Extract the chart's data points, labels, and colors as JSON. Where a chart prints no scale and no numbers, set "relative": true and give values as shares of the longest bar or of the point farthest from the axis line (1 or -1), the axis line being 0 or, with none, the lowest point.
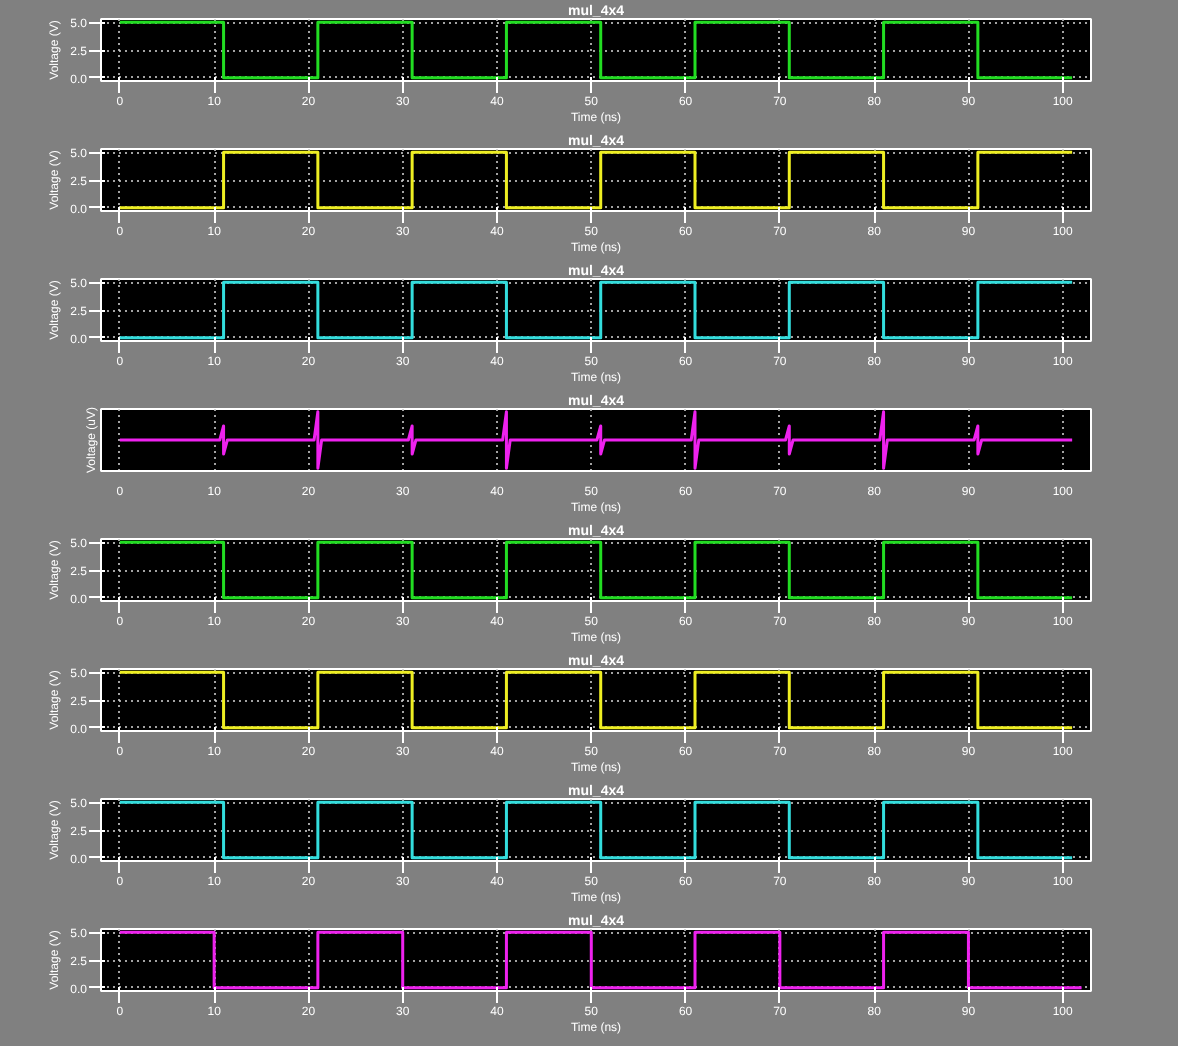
{
  "chart_data": [
    {
      "type": "line",
      "title": "mul_4x4",
      "xlabel": "Time (ns)",
      "ylabel": "Voltage (V)",
      "xlim": [
        -2,
        103
      ],
      "ylim": [
        -0.3,
        5.3
      ],
      "xticks": [
        0,
        10,
        20,
        30,
        40,
        50,
        60,
        70,
        80,
        90,
        100
      ],
      "yticks": [
        {
          "value": 0,
          "label": "0.0"
        },
        {
          "value": 2.5,
          "label": "2.5"
        },
        {
          "value": 5,
          "label": "5.0"
        }
      ],
      "grid": true,
      "series": [
        {
          "color": "#22dd22",
          "x": [
            0,
            11,
            11,
            21,
            21,
            31,
            31,
            41,
            41,
            51,
            51,
            61,
            61,
            71,
            71,
            81,
            81,
            91,
            91,
            101
          ],
          "values": [
            5,
            5,
            0,
            0,
            5,
            5,
            0,
            0,
            5,
            5,
            0,
            0,
            5,
            5,
            0,
            0,
            5,
            5,
            0,
            0
          ]
        }
      ]
    },
    {
      "type": "line",
      "title": "mul_4x4",
      "xlabel": "Time (ns)",
      "ylabel": "Voltage (V)",
      "xlim": [
        -2,
        103
      ],
      "ylim": [
        -0.3,
        5.3
      ],
      "xticks": [
        0,
        10,
        20,
        30,
        40,
        50,
        60,
        70,
        80,
        90,
        100
      ],
      "yticks": [
        {
          "value": 0,
          "label": "0.0"
        },
        {
          "value": 2.5,
          "label": "2.5"
        },
        {
          "value": 5,
          "label": "5.0"
        }
      ],
      "grid": true,
      "series": [
        {
          "color": "#eeee22",
          "x": [
            0,
            11,
            11,
            21,
            21,
            31,
            31,
            41,
            41,
            51,
            51,
            61,
            61,
            71,
            71,
            81,
            81,
            91,
            91,
            101
          ],
          "values": [
            0,
            0,
            5,
            5,
            0,
            0,
            5,
            5,
            0,
            0,
            5,
            5,
            0,
            0,
            5,
            5,
            0,
            0,
            5,
            5
          ]
        }
      ]
    },
    {
      "type": "line",
      "title": "mul_4x4",
      "xlabel": "Time (ns)",
      "ylabel": "Voltage (V)",
      "xlim": [
        -2,
        103
      ],
      "ylim": [
        -0.3,
        5.3
      ],
      "xticks": [
        0,
        10,
        20,
        30,
        40,
        50,
        60,
        70,
        80,
        90,
        100
      ],
      "yticks": [
        {
          "value": 0,
          "label": "0.0"
        },
        {
          "value": 2.5,
          "label": "2.5"
        },
        {
          "value": 5,
          "label": "5.0"
        }
      ],
      "grid": true,
      "series": [
        {
          "color": "#33dddd",
          "x": [
            0,
            11,
            11,
            21,
            21,
            31,
            31,
            41,
            41,
            51,
            51,
            61,
            61,
            71,
            71,
            81,
            81,
            91,
            91,
            101
          ],
          "values": [
            0,
            0,
            5,
            5,
            0,
            0,
            5,
            5,
            0,
            0,
            5,
            5,
            0,
            0,
            5,
            5,
            0,
            0,
            5,
            5
          ]
        }
      ]
    },
    {
      "type": "line",
      "title": "mul_4x4",
      "xlabel": "Time (ns)",
      "ylabel": "Voltage (uV)",
      "xlim": [
        -2,
        103
      ],
      "xticks": [
        0,
        10,
        20,
        30,
        40,
        50,
        60,
        70,
        80,
        90,
        100
      ],
      "relative": true,
      "grid": true,
      "series": [
        {
          "color": "#ee22ee",
          "x": [
            0,
            10.6,
            11,
            11,
            11.4,
            20.6,
            21,
            21,
            21.4,
            30.6,
            31,
            31,
            31.4,
            40.6,
            41,
            41,
            41.4,
            50.6,
            51,
            51,
            51.4,
            60.6,
            61,
            61,
            61.4,
            70.6,
            71,
            71,
            71.4,
            80.6,
            81,
            81,
            81.4,
            90.6,
            91,
            91,
            91.4,
            101
          ],
          "values": [
            0.5,
            0.5,
            0.75,
            0.25,
            0.5,
            0.5,
            1,
            0,
            0.5,
            0.5,
            0.75,
            0.25,
            0.5,
            0.5,
            1,
            0,
            0.5,
            0.5,
            0.75,
            0.25,
            0.5,
            0.5,
            1,
            0,
            0.5,
            0.5,
            0.75,
            0.25,
            0.5,
            0.5,
            1,
            0,
            0.5,
            0.5,
            0.75,
            0.25,
            0.5,
            0.5
          ]
        }
      ]
    },
    {
      "type": "line",
      "title": "mul_4x4",
      "xlabel": "Time (ns)",
      "ylabel": "Voltage (V)",
      "xlim": [
        -2,
        103
      ],
      "ylim": [
        -0.3,
        5.3
      ],
      "xticks": [
        0,
        10,
        20,
        30,
        40,
        50,
        60,
        70,
        80,
        90,
        100
      ],
      "yticks": [
        {
          "value": 0,
          "label": "0.0"
        },
        {
          "value": 2.5,
          "label": "2.5"
        },
        {
          "value": 5,
          "label": "5.0"
        }
      ],
      "grid": true,
      "series": [
        {
          "color": "#22dd22",
          "x": [
            0,
            11,
            11,
            21,
            21,
            31,
            31,
            41,
            41,
            51,
            51,
            61,
            61,
            71,
            71,
            81,
            81,
            91,
            91,
            101
          ],
          "values": [
            5,
            5,
            0,
            0,
            5,
            5,
            0,
            0,
            5,
            5,
            0,
            0,
            5,
            5,
            0,
            0,
            5,
            5,
            0,
            0
          ]
        }
      ]
    },
    {
      "type": "line",
      "title": "mul_4x4",
      "xlabel": "Time (ns)",
      "ylabel": "Voltage (V)",
      "xlim": [
        -2,
        103
      ],
      "ylim": [
        -0.3,
        5.3
      ],
      "xticks": [
        0,
        10,
        20,
        30,
        40,
        50,
        60,
        70,
        80,
        90,
        100
      ],
      "yticks": [
        {
          "value": 0,
          "label": "0.0"
        },
        {
          "value": 2.5,
          "label": "2.5"
        },
        {
          "value": 5,
          "label": "5.0"
        }
      ],
      "grid": true,
      "series": [
        {
          "color": "#eeee22",
          "x": [
            0,
            11,
            11,
            21,
            21,
            31,
            31,
            41,
            41,
            51,
            51,
            61,
            61,
            71,
            71,
            81,
            81,
            91,
            91,
            101
          ],
          "values": [
            5,
            5,
            0,
            0,
            5,
            5,
            0,
            0,
            5,
            5,
            0,
            0,
            5,
            5,
            0,
            0,
            5,
            5,
            0,
            0
          ]
        }
      ]
    },
    {
      "type": "line",
      "title": "mul_4x4",
      "xlabel": "Time (ns)",
      "ylabel": "Voltage (V)",
      "xlim": [
        -2,
        103
      ],
      "ylim": [
        -0.3,
        5.3
      ],
      "xticks": [
        0,
        10,
        20,
        30,
        40,
        50,
        60,
        70,
        80,
        90,
        100
      ],
      "yticks": [
        {
          "value": 0,
          "label": "0.0"
        },
        {
          "value": 2.5,
          "label": "2.5"
        },
        {
          "value": 5,
          "label": "5.0"
        }
      ],
      "grid": true,
      "series": [
        {
          "color": "#33dddd",
          "x": [
            0,
            11,
            11,
            21,
            21,
            31,
            31,
            41,
            41,
            51,
            51,
            61,
            61,
            71,
            71,
            81,
            81,
            91,
            91,
            101
          ],
          "values": [
            5,
            5,
            0,
            0,
            5,
            5,
            0,
            0,
            5,
            5,
            0,
            0,
            5,
            5,
            0,
            0,
            5,
            5,
            0,
            0
          ]
        }
      ]
    },
    {
      "type": "line",
      "title": "mul_4x4",
      "xlabel": "Time (ns)",
      "ylabel": "Voltage (V)",
      "xlim": [
        -2,
        103
      ],
      "ylim": [
        -0.3,
        5.3
      ],
      "xticks": [
        0,
        10,
        20,
        30,
        40,
        50,
        60,
        70,
        80,
        90,
        100
      ],
      "yticks": [
        {
          "value": 0,
          "label": "0.0"
        },
        {
          "value": 2.5,
          "label": "2.5"
        },
        {
          "value": 5,
          "label": "5.0"
        }
      ],
      "grid": true,
      "series": [
        {
          "color": "#ee22ee",
          "x": [
            0,
            10,
            10,
            21,
            21,
            30,
            30,
            41,
            41,
            50,
            50,
            61,
            61,
            70,
            70,
            81,
            81,
            90,
            90,
            102
          ],
          "values": [
            5,
            5,
            0,
            0,
            5,
            5,
            0,
            0,
            5,
            5,
            0,
            0,
            5,
            5,
            0,
            0,
            5,
            5,
            0,
            0
          ]
        }
      ]
    }
  ]
}
